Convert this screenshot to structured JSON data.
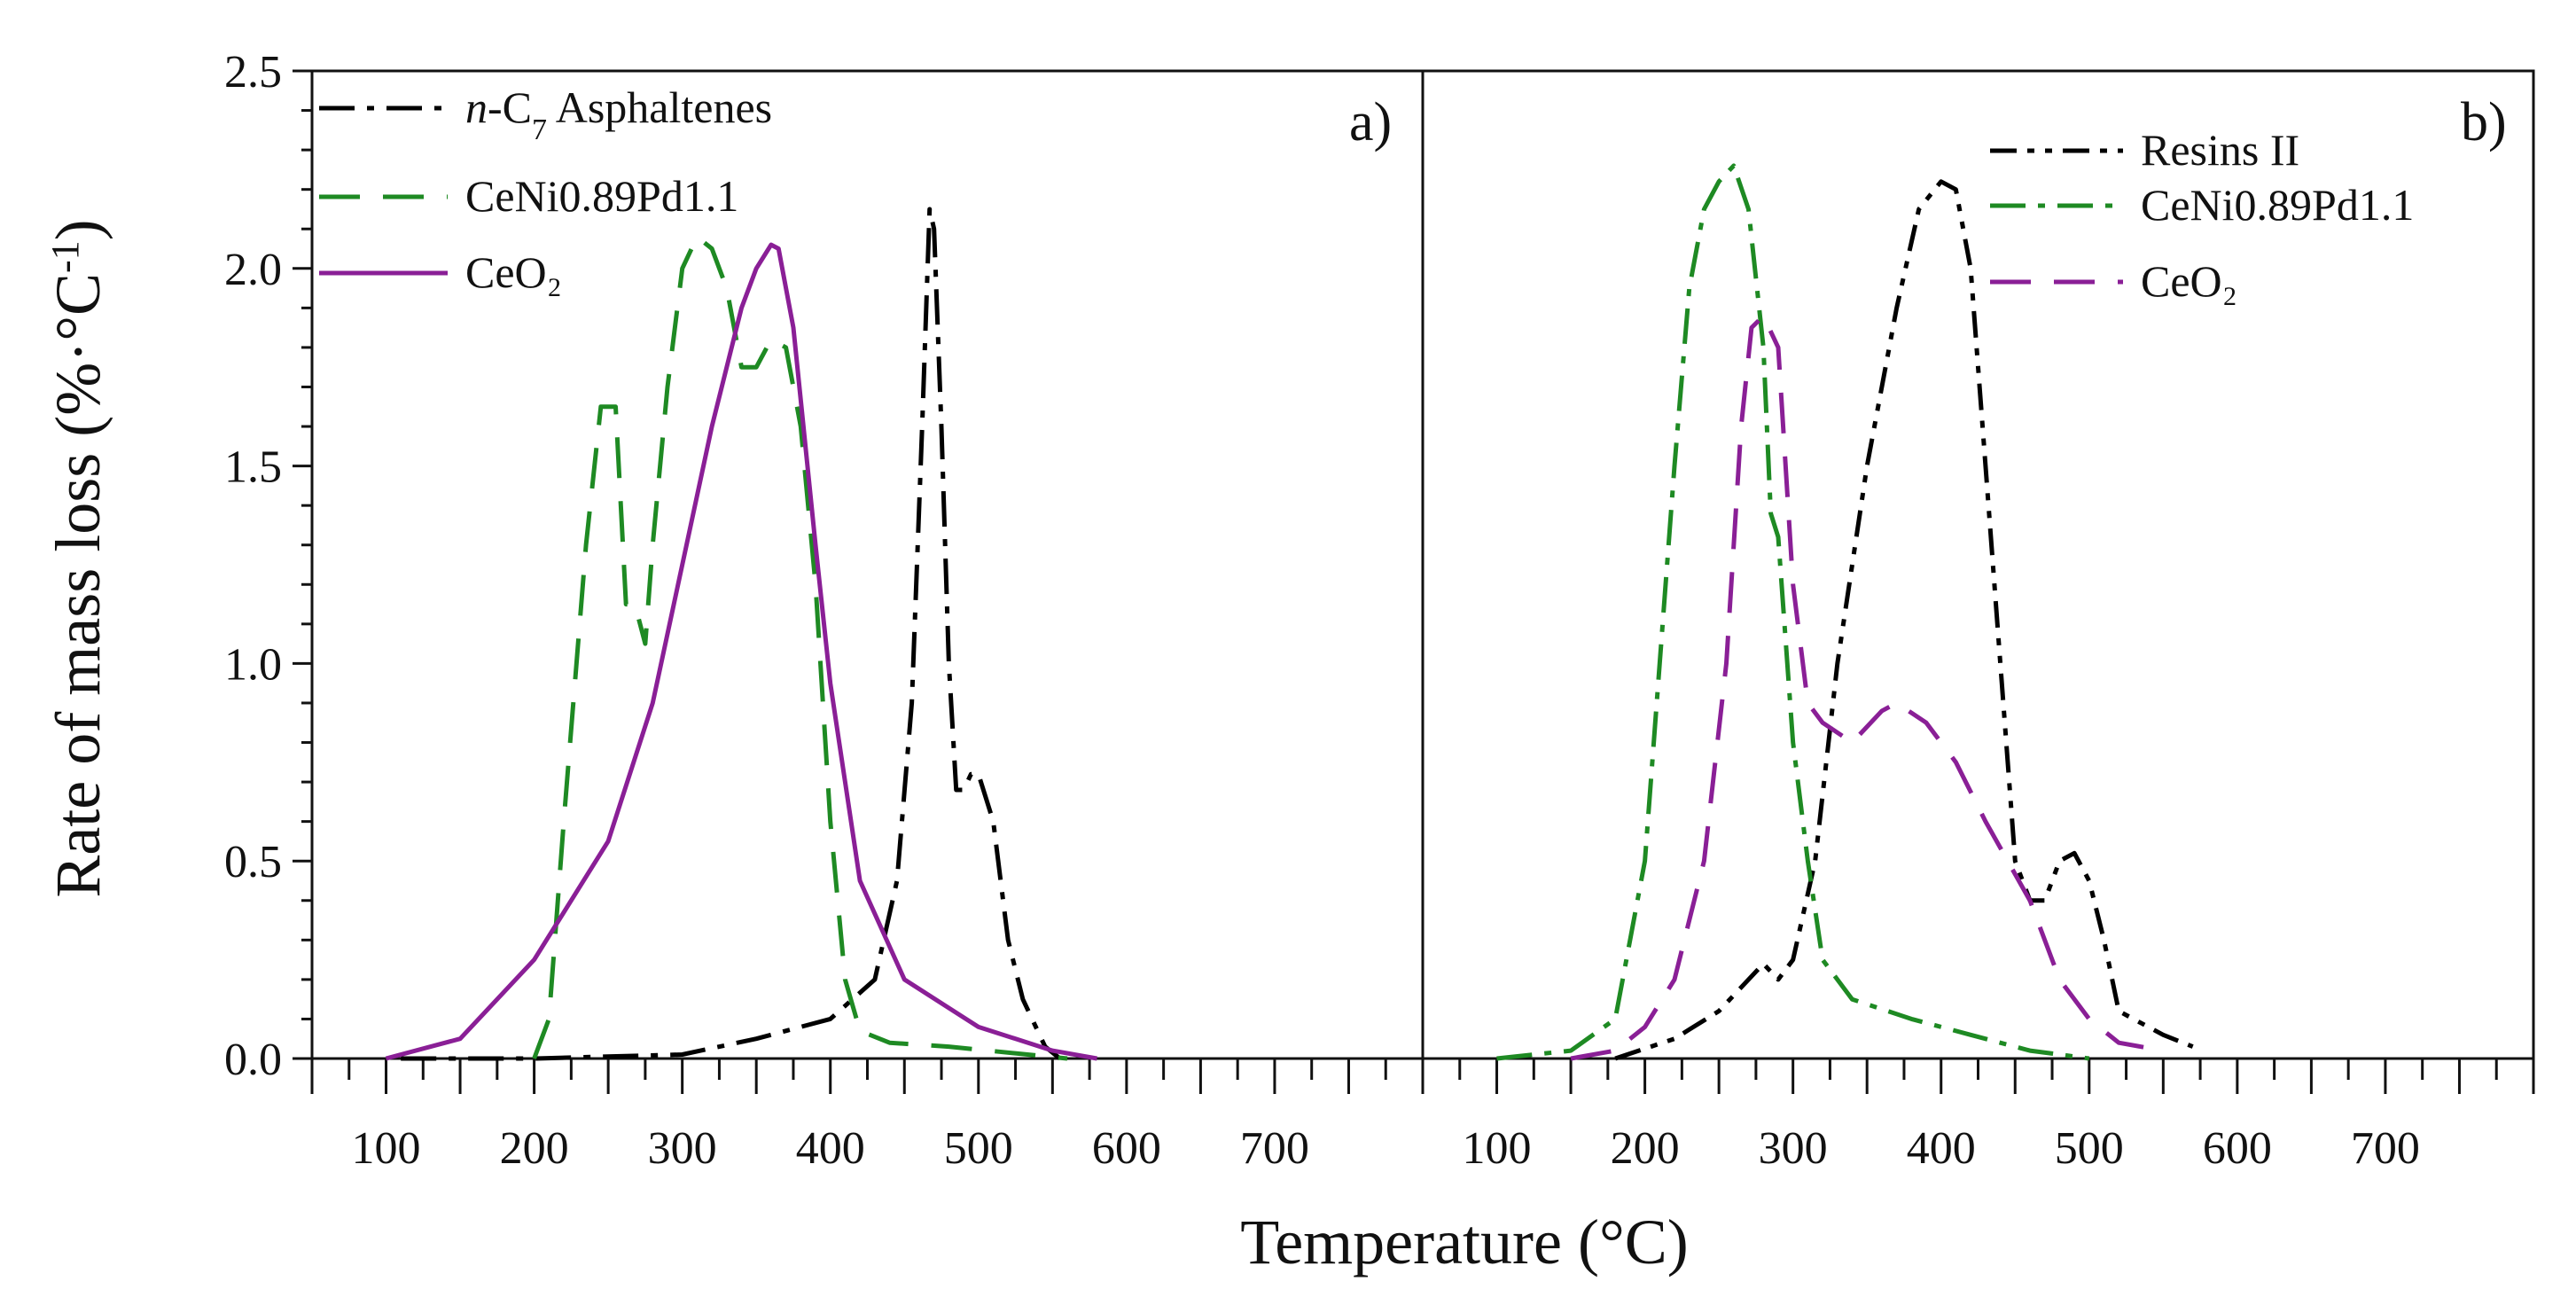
{
  "figure": {
    "ylabel": "Rate of mass loss (%·°C⁻¹)",
    "ylabel_parts": {
      "main": "Rate of mass loss (%·°C",
      "sup": "-1",
      "close": ")"
    },
    "xlabel": "Temperature (°C)"
  },
  "colors": {
    "black": "#000000",
    "green": "#1e8a23",
    "purple": "#8a1f96",
    "axis": "#111111"
  },
  "chart_data": [
    {
      "type": "line",
      "panel": "a)",
      "xlabel": "Temperature (°C)",
      "ylabel": "Rate of mass loss (%·°C⁻¹)",
      "xlim": [
        50,
        800
      ],
      "ylim": [
        0.0,
        2.5
      ],
      "xticks": [
        100,
        200,
        300,
        400,
        500,
        600,
        700
      ],
      "yticks": [
        "0.0",
        "0.5",
        "1.0",
        "1.5",
        "2.0",
        "2.5"
      ],
      "legend_position": "top-left",
      "series": [
        {
          "name": "n-C7 Asphaltenes",
          "legend": {
            "prefix": "n",
            "mid": "-C",
            "sub": "7",
            "suffix": " Asphaltenes"
          },
          "color": "black",
          "style": "dashdot",
          "x": [
            110,
            200,
            300,
            350,
            400,
            430,
            445,
            455,
            462,
            467,
            470,
            475,
            480,
            485,
            490,
            495,
            500,
            510,
            520,
            530,
            545,
            555
          ],
          "y": [
            0.0,
            0.0,
            0.01,
            0.05,
            0.1,
            0.2,
            0.45,
            0.9,
            1.6,
            2.15,
            2.1,
            1.6,
            1.0,
            0.68,
            0.68,
            0.72,
            0.72,
            0.6,
            0.3,
            0.15,
            0.03,
            0.0
          ]
        },
        {
          "name": "CeNi0.89Pd1.1",
          "legend": {
            "text": "CeNi0.89Pd1.1"
          },
          "color": "green",
          "style": "dashed",
          "x": [
            200,
            210,
            220,
            235,
            245,
            255,
            262,
            268,
            275,
            280,
            290,
            300,
            310,
            320,
            330,
            340,
            350,
            360,
            370,
            380,
            390,
            400,
            410,
            420,
            440,
            480,
            560
          ],
          "y": [
            0.0,
            0.1,
            0.6,
            1.3,
            1.65,
            1.65,
            1.15,
            1.15,
            1.05,
            1.3,
            1.7,
            2.0,
            2.08,
            2.05,
            1.95,
            1.75,
            1.75,
            1.82,
            1.8,
            1.6,
            1.2,
            0.6,
            0.2,
            0.07,
            0.04,
            0.03,
            0.0
          ]
        },
        {
          "name": "CeO2",
          "legend": {
            "text": "CeO₂"
          },
          "color": "purple",
          "style": "solid",
          "x": [
            100,
            150,
            200,
            250,
            280,
            300,
            320,
            340,
            350,
            360,
            365,
            375,
            390,
            400,
            420,
            450,
            500,
            550,
            580
          ],
          "y": [
            0.0,
            0.05,
            0.25,
            0.55,
            0.9,
            1.25,
            1.6,
            1.9,
            2.0,
            2.06,
            2.05,
            1.85,
            1.3,
            0.95,
            0.45,
            0.2,
            0.08,
            0.02,
            0.0
          ]
        }
      ]
    },
    {
      "type": "line",
      "panel": "b)",
      "xlabel": "Temperature (°C)",
      "ylabel": "",
      "xlim": [
        50,
        800
      ],
      "ylim": [
        0.0,
        2.5
      ],
      "xticks": [
        100,
        200,
        300,
        400,
        500,
        600,
        700
      ],
      "legend_position": "top-right",
      "series": [
        {
          "name": "Resins II",
          "legend": {
            "text": "Resins II"
          },
          "color": "black",
          "style": "dashdotdot",
          "x": [
            180,
            220,
            250,
            270,
            280,
            290,
            300,
            315,
            330,
            350,
            370,
            385,
            400,
            410,
            420,
            430,
            440,
            450,
            460,
            470,
            480,
            490,
            500,
            510,
            520,
            550,
            570
          ],
          "y": [
            0.0,
            0.05,
            0.12,
            0.2,
            0.24,
            0.2,
            0.25,
            0.5,
            1.0,
            1.5,
            1.9,
            2.15,
            2.22,
            2.2,
            2.0,
            1.5,
            1.0,
            0.5,
            0.4,
            0.4,
            0.5,
            0.52,
            0.45,
            0.3,
            0.12,
            0.06,
            0.03
          ]
        },
        {
          "name": "CeNi0.89Pd1.1",
          "legend": {
            "text": "CeNi0.89Pd1.1"
          },
          "color": "green",
          "style": "dashdot",
          "x": [
            100,
            150,
            180,
            200,
            210,
            220,
            230,
            240,
            250,
            260,
            270,
            280,
            285,
            290,
            300,
            310,
            320,
            340,
            380,
            420,
            460,
            480,
            500
          ],
          "y": [
            0.0,
            0.02,
            0.1,
            0.5,
            1.0,
            1.5,
            1.95,
            2.15,
            2.22,
            2.26,
            2.15,
            1.8,
            1.38,
            1.32,
            0.8,
            0.5,
            0.25,
            0.15,
            0.1,
            0.06,
            0.02,
            0.01,
            0.0
          ]
        },
        {
          "name": "CeO2",
          "legend": {
            "text": "CeO₂"
          },
          "color": "purple",
          "style": "dashed",
          "x": [
            150,
            180,
            200,
            220,
            240,
            255,
            265,
            272,
            280,
            290,
            300,
            310,
            320,
            340,
            360,
            370,
            390,
            410,
            430,
            460,
            480,
            500,
            520,
            550
          ],
          "y": [
            0.0,
            0.02,
            0.08,
            0.2,
            0.5,
            1.0,
            1.6,
            1.85,
            1.88,
            1.8,
            1.2,
            0.9,
            0.85,
            0.8,
            0.88,
            0.9,
            0.85,
            0.75,
            0.6,
            0.4,
            0.2,
            0.1,
            0.04,
            0.02
          ]
        }
      ]
    }
  ]
}
